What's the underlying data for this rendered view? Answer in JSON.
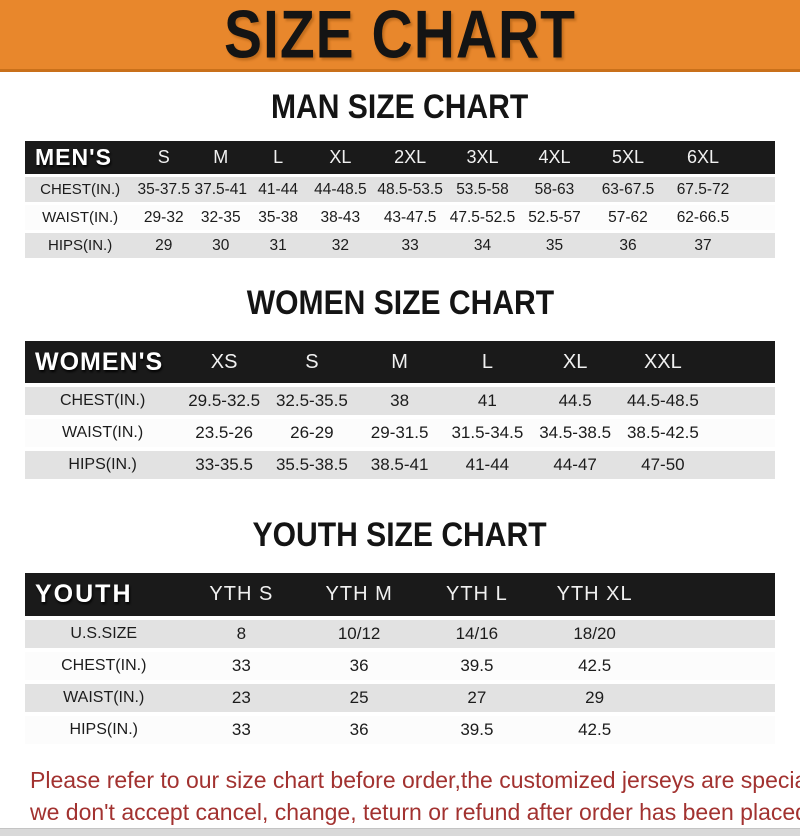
{
  "banner": {
    "title": "SIZE CHART"
  },
  "men": {
    "heading": "MAN SIZE CHART",
    "label": "MEN'S",
    "columns": [
      "S",
      "M",
      "L",
      "XL",
      "2XL",
      "3XL",
      "4XL",
      "5XL",
      "6XL"
    ],
    "rows": [
      {
        "label": "CHEST(IN.)",
        "values": [
          "35-37.5",
          "37.5-41",
          "41-44",
          "44-48.5",
          "48.5-53.5",
          "53.5-58",
          "58-63",
          "63-67.5",
          "67.5-72"
        ]
      },
      {
        "label": "WAIST(IN.)",
        "values": [
          "29-32",
          "32-35",
          "35-38",
          "38-43",
          "43-47.5",
          "47.5-52.5",
          "52.5-57",
          "57-62",
          "62-66.5"
        ]
      },
      {
        "label": "HIPS(IN.)",
        "values": [
          "29",
          "30",
          "31",
          "32",
          "33",
          "34",
          "35",
          "36",
          "37"
        ]
      }
    ]
  },
  "women": {
    "heading": "WOMEN SIZE CHART",
    "label": "WOMEN'S",
    "columns": [
      "XS",
      "S",
      "M",
      "L",
      "XL",
      "XXL"
    ],
    "rows": [
      {
        "label": "CHEST(IN.)",
        "values": [
          "29.5-32.5",
          "32.5-35.5",
          "38",
          "41",
          "44.5",
          "44.5-48.5"
        ]
      },
      {
        "label": "WAIST(IN.)",
        "values": [
          "23.5-26",
          "26-29",
          "29-31.5",
          "31.5-34.5",
          "34.5-38.5",
          "38.5-42.5"
        ]
      },
      {
        "label": "HIPS(IN.)",
        "values": [
          "33-35.5",
          "35.5-38.5",
          "38.5-41",
          "41-44",
          "44-47",
          "47-50"
        ]
      }
    ]
  },
  "youth": {
    "heading": "YOUTH SIZE CHART",
    "label": "YOUTH",
    "columns": [
      "YTH S",
      "YTH M",
      "YTH L",
      "YTH XL"
    ],
    "rows": [
      {
        "label": "U.S.SIZE",
        "values": [
          "8",
          "10/12",
          "14/16",
          "18/20"
        ]
      },
      {
        "label": "CHEST(IN.)",
        "values": [
          "33",
          "36",
          "39.5",
          "42.5"
        ]
      },
      {
        "label": "WAIST(IN.)",
        "values": [
          "23",
          "25",
          "27",
          "29"
        ]
      },
      {
        "label": "HIPS(IN.)",
        "values": [
          "33",
          "36",
          "39.5",
          "42.5"
        ]
      }
    ]
  },
  "footer": {
    "line1": "Please refer to our size chart before order,the customized jerseys are special products,",
    "line2": "we don't accept cancel, change, teturn or refund after order has been placed!"
  },
  "colors": {
    "accent_orange": "#E8872C",
    "header_black": "#1a1a1a",
    "row_gray": "#E2E2E2",
    "footer_red": "#A23230"
  }
}
